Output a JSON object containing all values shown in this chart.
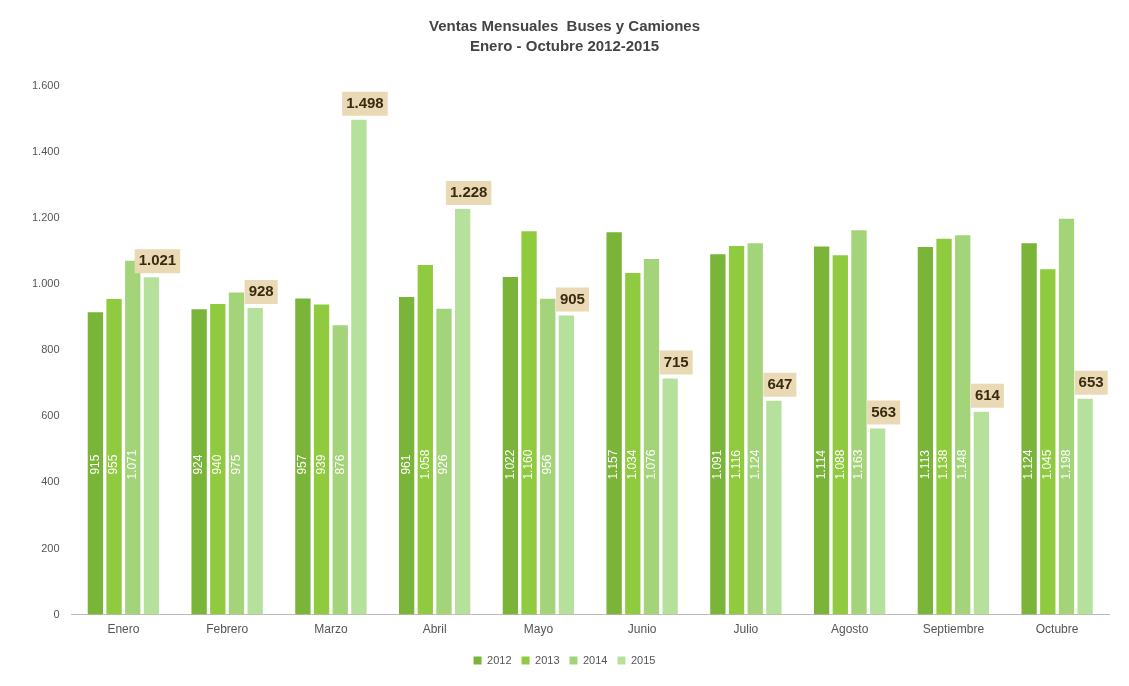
{
  "chart_data": {
    "type": "bar",
    "title": "Ventas Mensuales  Buses y Camiones",
    "subtitle": "Enero - Octubre 2012-2015",
    "categories": [
      "Enero",
      "Febrero",
      "Marzo",
      "Abril",
      "Mayo",
      "Junio",
      "Julio",
      "Agosto",
      "Septiembre",
      "Octubre"
    ],
    "series": [
      {
        "name": "2012",
        "color": "#7ab53a",
        "values": [
          915,
          924,
          957,
          961,
          1022,
          1157,
          1091,
          1114,
          1113,
          1124
        ],
        "value_labels": [
          "915",
          "924",
          "957",
          "961",
          "1.022",
          "1.157",
          "1.091",
          "1.114",
          "1.113",
          "1.124"
        ]
      },
      {
        "name": "2013",
        "color": "#8fca3f",
        "values": [
          955,
          940,
          939,
          1058,
          1160,
          1034,
          1116,
          1088,
          1138,
          1045
        ],
        "value_labels": [
          "955",
          "940",
          "939",
          "1.058",
          "1.160",
          "1.034",
          "1.116",
          "1.088",
          "1.138",
          "1.045"
        ]
      },
      {
        "name": "2014",
        "color": "#a3d47a",
        "values": [
          1071,
          975,
          876,
          926,
          956,
          1076,
          1124,
          1163,
          1148,
          1198
        ],
        "value_labels": [
          "1.071",
          "975",
          "876",
          "926",
          "956",
          "1.076",
          "1.124",
          "1.163",
          "1.148",
          "1.198"
        ]
      },
      {
        "name": "2015",
        "color": "#b6e19c",
        "values": [
          1021,
          928,
          1498,
          1228,
          905,
          715,
          647,
          563,
          614,
          653
        ],
        "value_labels": [
          "1.021",
          "928",
          "1.498",
          "1.228",
          "905",
          "715",
          "647",
          "563",
          "614",
          "653"
        ]
      }
    ],
    "ylim": [
      0,
      1600
    ],
    "yticks": [
      0,
      200,
      400,
      600,
      800,
      {
        "value": 1000,
        "label": "1.000"
      },
      {
        "value": 1200,
        "label": "1.200"
      },
      {
        "value": 1400,
        "label": "1.400"
      },
      {
        "value": 1600,
        "label": "1.600"
      }
    ],
    "grid": false,
    "legend": "bottom"
  }
}
